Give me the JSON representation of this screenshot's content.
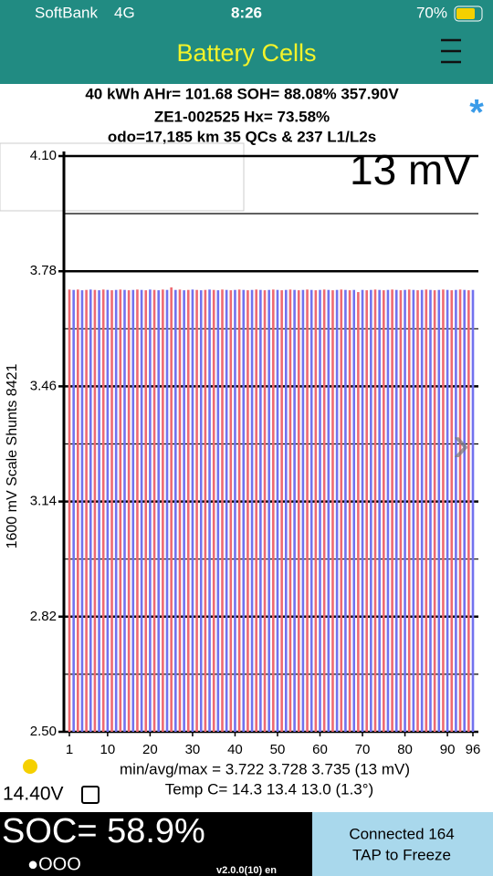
{
  "status_bar": {
    "carrier": "SoftBank",
    "network": "4G",
    "time": "8:26",
    "battery": "70%"
  },
  "nav": {
    "title": "Battery Cells"
  },
  "header": {
    "line1": "40 kWh  AHr= 101.68 SOH= 88.08% 357.90V",
    "line2": "ZE1-002525   Hx= 73.58%",
    "line3": "odo=17,185 km 35 QCs & 237 L1/L2s"
  },
  "spread": "13 mV",
  "y_axis_label": "1600 mV Scale   Shunts 8421",
  "summary": {
    "minavgmax": "min/avg/max = 3.722 3.728 3.735  (13 mV)",
    "temp": "Temp C= 14.3  13.4  13.0  (1.3°)"
  },
  "aux_voltage": "14.40V",
  "soc": "SOC= 58.9%",
  "connection": {
    "line1": "Connected 164",
    "line2": "TAP to Freeze"
  },
  "version": "v2.0.0(10) en",
  "chart_data": {
    "type": "bar",
    "x": [
      1,
      2,
      3,
      4,
      5,
      6,
      7,
      8,
      9,
      10,
      11,
      12,
      13,
      14,
      15,
      16,
      17,
      18,
      19,
      20,
      21,
      22,
      23,
      24,
      25,
      26,
      27,
      28,
      29,
      30,
      31,
      32,
      33,
      34,
      35,
      36,
      37,
      38,
      39,
      40,
      41,
      42,
      43,
      44,
      45,
      46,
      47,
      48,
      49,
      50,
      51,
      52,
      53,
      54,
      55,
      56,
      57,
      58,
      59,
      60,
      61,
      62,
      63,
      64,
      65,
      66,
      67,
      68,
      69,
      70,
      71,
      72,
      73,
      74,
      75,
      76,
      77,
      78,
      79,
      80,
      81,
      82,
      83,
      84,
      85,
      86,
      87,
      88,
      89,
      90,
      91,
      92,
      93,
      94,
      95,
      96
    ],
    "values": [
      3.729,
      3.728,
      3.729,
      3.727,
      3.728,
      3.729,
      3.728,
      3.727,
      3.729,
      3.728,
      3.727,
      3.728,
      3.729,
      3.728,
      3.727,
      3.728,
      3.729,
      3.728,
      3.727,
      3.729,
      3.728,
      3.727,
      3.729,
      3.728,
      3.735,
      3.728,
      3.729,
      3.727,
      3.728,
      3.729,
      3.728,
      3.727,
      3.728,
      3.729,
      3.728,
      3.727,
      3.729,
      3.728,
      3.727,
      3.728,
      3.729,
      3.728,
      3.727,
      3.728,
      3.729,
      3.728,
      3.727,
      3.728,
      3.729,
      3.728,
      3.727,
      3.728,
      3.729,
      3.728,
      3.727,
      3.728,
      3.729,
      3.728,
      3.727,
      3.728,
      3.729,
      3.728,
      3.727,
      3.728,
      3.729,
      3.728,
      3.727,
      3.728,
      3.722,
      3.728,
      3.727,
      3.728,
      3.729,
      3.728,
      3.727,
      3.728,
      3.729,
      3.728,
      3.727,
      3.728,
      3.729,
      3.728,
      3.727,
      3.728,
      3.729,
      3.728,
      3.727,
      3.728,
      3.729,
      3.728,
      3.727,
      3.728,
      3.729,
      3.728,
      3.727,
      3.728
    ],
    "colors": [
      "#ee6a72",
      "#7272ee"
    ],
    "xlim": [
      1,
      96
    ],
    "xticks": [
      1,
      10,
      20,
      30,
      40,
      50,
      60,
      70,
      80,
      90,
      96
    ],
    "ylim": [
      2.5,
      4.1
    ],
    "yticks": [
      {
        "value": 4.1,
        "label": "4.10"
      },
      3.78,
      3.46,
      3.14,
      2.82,
      {
        "value": 2.5,
        "label": "2.50"
      }
    ],
    "minor_yticks": [
      3.94,
      3.62,
      3.3,
      2.98,
      2.66
    ],
    "grid": true
  }
}
